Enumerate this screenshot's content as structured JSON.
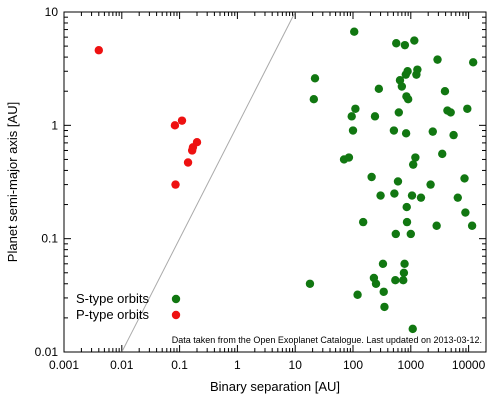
{
  "chart_data": {
    "type": "scatter",
    "xlabel": "Binary separation [AU]",
    "ylabel": "Planet semi-major axis [AU]",
    "xscale": "log",
    "yscale": "log",
    "xlim": [
      0.001,
      20000
    ],
    "ylim": [
      0.01,
      10
    ],
    "xticks": [
      {
        "value": 0.001,
        "label": "0.001"
      },
      {
        "value": 0.01,
        "label": "0.01"
      },
      {
        "value": 0.1,
        "label": "0.1"
      },
      {
        "value": 1,
        "label": "1"
      },
      {
        "value": 10,
        "label": "10"
      },
      {
        "value": 100,
        "label": "100"
      },
      {
        "value": 1000,
        "label": "1000"
      },
      {
        "value": 10000,
        "label": "10000"
      }
    ],
    "yticks": [
      {
        "value": 0.01,
        "label": "0.01"
      },
      {
        "value": 0.1,
        "label": "0.1"
      },
      {
        "value": 1,
        "label": "1"
      },
      {
        "value": 10,
        "label": "10"
      }
    ],
    "reference_line": {
      "from": [
        0.01,
        0.01
      ],
      "to": [
        10,
        10
      ],
      "color": "#aaaaaa"
    },
    "legend_position": "bottom-left",
    "annotation": "Data taken from the Open Exoplanet Catalogue. Last updated on 2013-03-12.",
    "series": [
      {
        "name": "S-type orbits",
        "color": "#117711",
        "points": [
          [
            22,
            2.6
          ],
          [
            21,
            1.7
          ],
          [
            18,
            0.04
          ],
          [
            70,
            0.5
          ],
          [
            85,
            0.52
          ],
          [
            95,
            1.2
          ],
          [
            110,
            1.4
          ],
          [
            100,
            0.9
          ],
          [
            105,
            6.7
          ],
          [
            150,
            0.14
          ],
          [
            120,
            0.032
          ],
          [
            210,
            0.35
          ],
          [
            230,
            0.045
          ],
          [
            250,
            0.04
          ],
          [
            240,
            1.2
          ],
          [
            280,
            2.1
          ],
          [
            300,
            0.24
          ],
          [
            330,
            0.06
          ],
          [
            340,
            0.034
          ],
          [
            350,
            0.025
          ],
          [
            510,
            0.9
          ],
          [
            520,
            0.25
          ],
          [
            540,
            0.043
          ],
          [
            550,
            0.11
          ],
          [
            560,
            5.3
          ],
          [
            600,
            0.32
          ],
          [
            620,
            1.3
          ],
          [
            650,
            2.5
          ],
          [
            700,
            2.2
          ],
          [
            740,
            0.043
          ],
          [
            760,
            0.05
          ],
          [
            780,
            0.06
          ],
          [
            790,
            5.1
          ],
          [
            820,
            2.8
          ],
          [
            830,
            0.85
          ],
          [
            840,
            1.8
          ],
          [
            850,
            0.19
          ],
          [
            860,
            0.14
          ],
          [
            880,
            3.0
          ],
          [
            900,
            1.7
          ],
          [
            1000,
            0.11
          ],
          [
            1050,
            0.24
          ],
          [
            1080,
            0.016
          ],
          [
            1100,
            0.45
          ],
          [
            1150,
            5.6
          ],
          [
            1200,
            0.52
          ],
          [
            1250,
            2.8
          ],
          [
            1300,
            3.1
          ],
          [
            1500,
            0.23
          ],
          [
            2200,
            0.3
          ],
          [
            2400,
            0.88
          ],
          [
            2800,
            0.13
          ],
          [
            2900,
            3.8
          ],
          [
            3500,
            0.56
          ],
          [
            3900,
            2.0
          ],
          [
            4300,
            1.35
          ],
          [
            4900,
            1.3
          ],
          [
            5500,
            0.82
          ],
          [
            6500,
            0.23
          ],
          [
            8500,
            0.34
          ],
          [
            8800,
            0.17
          ],
          [
            9500,
            1.4
          ],
          [
            11500,
            0.13
          ],
          [
            12000,
            3.6
          ]
        ]
      },
      {
        "name": "P-type orbits",
        "color": "#ee1111",
        "points": [
          [
            0.004,
            4.6
          ],
          [
            0.083,
            1.0
          ],
          [
            0.085,
            0.3
          ],
          [
            0.11,
            1.1
          ],
          [
            0.14,
            0.47
          ],
          [
            0.165,
            0.6
          ],
          [
            0.17,
            0.64
          ],
          [
            0.2,
            0.71
          ]
        ]
      }
    ]
  }
}
